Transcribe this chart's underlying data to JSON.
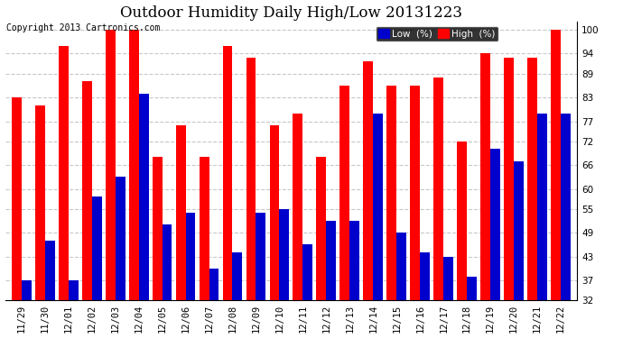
{
  "title": "Outdoor Humidity Daily High/Low 20131223",
  "copyright": "Copyright 2013 Cartronics.com",
  "categories": [
    "11/29",
    "11/30",
    "12/01",
    "12/02",
    "12/03",
    "12/04",
    "12/05",
    "12/06",
    "12/07",
    "12/08",
    "12/09",
    "12/10",
    "12/11",
    "12/12",
    "12/13",
    "12/14",
    "12/15",
    "12/16",
    "12/17",
    "12/18",
    "12/19",
    "12/20",
    "12/21",
    "12/22"
  ],
  "high_values": [
    83,
    81,
    96,
    87,
    100,
    100,
    68,
    76,
    68,
    96,
    93,
    76,
    79,
    68,
    86,
    92,
    86,
    86,
    88,
    72,
    94,
    93,
    93,
    100
  ],
  "low_values": [
    37,
    47,
    37,
    58,
    63,
    84,
    51,
    54,
    40,
    44,
    54,
    55,
    46,
    52,
    52,
    79,
    49,
    44,
    43,
    38,
    70,
    67,
    79,
    79
  ],
  "high_color": "#ff0000",
  "low_color": "#0000cc",
  "bg_color": "#ffffff",
  "grid_color": "#c8c8c8",
  "ylim_min": 32,
  "ylim_max": 102,
  "yticks": [
    32,
    37,
    43,
    49,
    55,
    60,
    66,
    72,
    77,
    83,
    89,
    94,
    100
  ],
  "legend_low_label": "Low  (%)",
  "legend_high_label": "High  (%)",
  "bar_width": 0.42,
  "title_fontsize": 12,
  "copyright_fontsize": 7,
  "tick_fontsize": 7.5,
  "label_fontsize": 9
}
